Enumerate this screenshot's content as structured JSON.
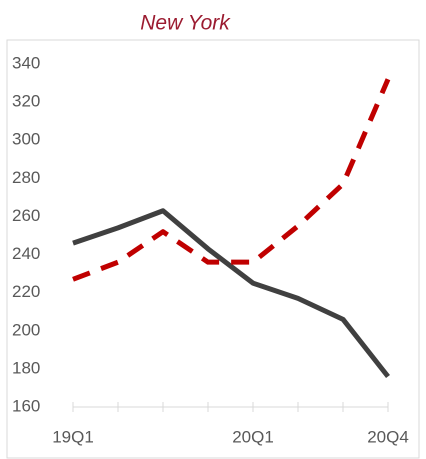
{
  "chart_data": {
    "type": "line",
    "title": "New York",
    "categories": [
      "19Q1",
      null,
      null,
      null,
      "20Q1",
      null,
      null,
      "20Q4"
    ],
    "series": [
      {
        "color": "#404040",
        "dash": false,
        "values": [
          246,
          254,
          263,
          243,
          225,
          217,
          206,
          176
        ]
      },
      {
        "color": "#c00000",
        "dash": true,
        "values": [
          227,
          236,
          252,
          236,
          236,
          255,
          277,
          332
        ]
      }
    ],
    "ylim": [
      160,
      340
    ],
    "yticks": [
      160,
      180,
      200,
      220,
      240,
      260,
      280,
      300,
      320,
      340
    ],
    "grid": false
  }
}
